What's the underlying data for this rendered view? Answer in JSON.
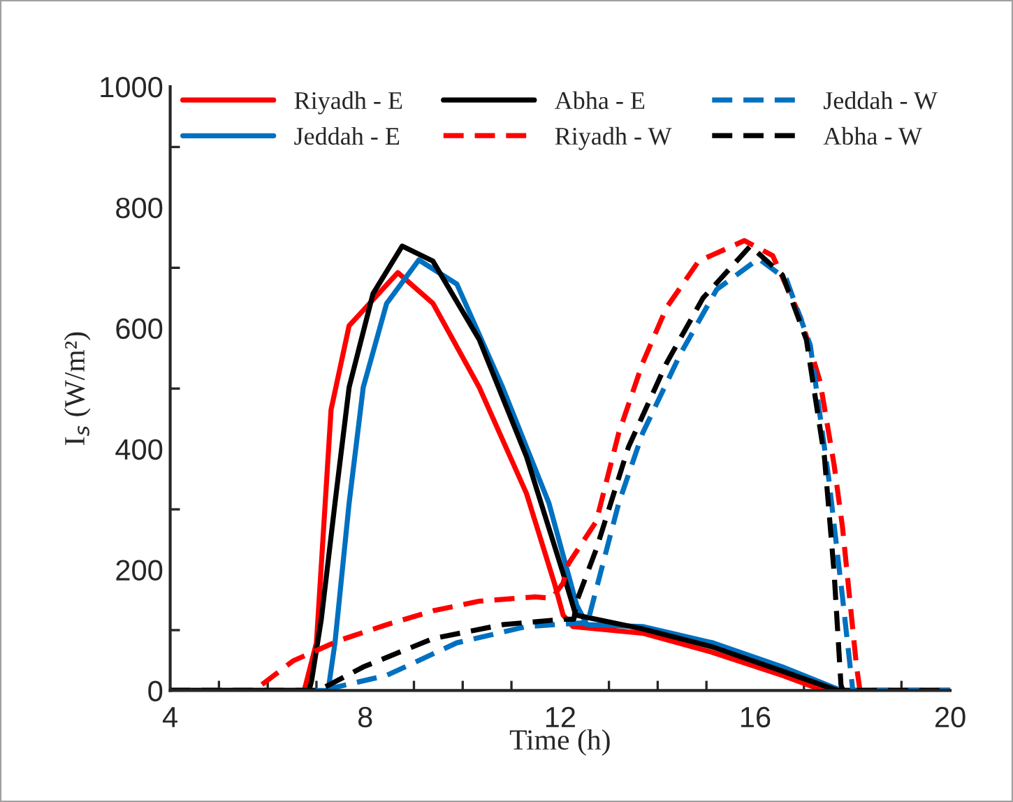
{
  "chart_data": {
    "type": "line",
    "xlabel": "Time (h)",
    "ylabel": "I$_{s}$ (W/m²)",
    "xlim": [
      4,
      20
    ],
    "xticks": [
      4,
      8,
      12,
      16,
      20
    ],
    "ylim": [
      0,
      1000
    ],
    "yticks": [
      0,
      200,
      400,
      600,
      800,
      1000
    ],
    "grid": false,
    "legend": "top",
    "marker": "none",
    "series": [
      {
        "name": "Riyadh - E",
        "color": "#ff0000",
        "line_style": "solid",
        "x": [
          4,
          6.75,
          7.0,
          7.3,
          7.67,
          8.67,
          9.39,
          10.34,
          11.31,
          11.88,
          12.06,
          12.26,
          13.69,
          15.13,
          16.56,
          17.33,
          17.4,
          20
        ],
        "values": [
          0,
          0,
          79,
          465,
          604,
          692,
          641,
          502,
          326,
          178,
          125,
          106,
          95,
          63,
          25,
          2,
          0,
          0
        ]
      },
      {
        "name": "Jeddah - E",
        "color": "#0070c0",
        "line_style": "solid",
        "x": [
          4,
          7.24,
          7.38,
          7.67,
          7.96,
          8.44,
          9.1,
          9.88,
          10.82,
          11.77,
          12.34,
          12.55,
          13.69,
          15.13,
          16.56,
          17.7,
          17.8,
          20
        ],
        "values": [
          0,
          0,
          79,
          310,
          502,
          641,
          713,
          673,
          502,
          310,
          141,
          109,
          106,
          79,
          39,
          2,
          0,
          0
        ]
      },
      {
        "name": "Abha - E",
        "color": "#000000",
        "line_style": "solid",
        "x": [
          4,
          6.85,
          6.9,
          7.1,
          7.38,
          7.67,
          8.16,
          8.76,
          9.39,
          10.34,
          11.31,
          12.06,
          12.32,
          13.69,
          15.13,
          16.56,
          17.62,
          17.7,
          20
        ],
        "values": [
          0,
          0,
          16,
          118,
          310,
          502,
          657,
          736,
          711,
          581,
          387,
          194,
          125,
          102,
          72,
          32,
          2,
          0,
          0
        ]
      },
      {
        "name": "Riyadh - W",
        "color": "#ff0000",
        "line_style": "dashed",
        "x": [
          4,
          5.72,
          6.52,
          7.47,
          8.44,
          9.39,
          10.34,
          11.48,
          11.83,
          12.06,
          12.17,
          12.74,
          13.2,
          13.69,
          14.18,
          14.84,
          15.78,
          16.36,
          16.93,
          17.33,
          17.62,
          17.79,
          18.08,
          18.15,
          20
        ],
        "values": [
          0,
          0,
          49,
          83,
          109,
          132,
          148,
          155,
          153,
          178,
          210,
          280,
          426,
          542,
          634,
          711,
          745,
          720,
          618,
          512,
          373,
          271,
          39,
          0,
          0
        ]
      },
      {
        "name": "Jeddah - W",
        "color": "#0070c0",
        "line_style": "dashed",
        "x": [
          4,
          7.1,
          8.44,
          9.88,
          11.31,
          12.46,
          12.55,
          13.2,
          13.69,
          14.47,
          15.21,
          16.07,
          16.64,
          17.13,
          17.51,
          17.79,
          17.99,
          18.0,
          20
        ],
        "values": [
          0,
          0,
          25,
          79,
          106,
          112,
          109,
          310,
          426,
          558,
          664,
          715,
          681,
          572,
          350,
          155,
          9,
          0,
          0
        ]
      },
      {
        "name": "Abha - W",
        "color": "#000000",
        "line_style": "dashed",
        "x": [
          4,
          7.04,
          7.96,
          9.39,
          10.82,
          12.06,
          12.28,
          12.34,
          12.74,
          13.4,
          14.18,
          14.93,
          15.9,
          16.56,
          17.05,
          17.42,
          17.62,
          17.76,
          17.8,
          20
        ],
        "values": [
          0,
          0,
          39,
          86,
          109,
          118,
          118,
          148,
          234,
          403,
          542,
          650,
          736,
          688,
          581,
          387,
          194,
          9,
          0,
          0
        ]
      }
    ]
  }
}
